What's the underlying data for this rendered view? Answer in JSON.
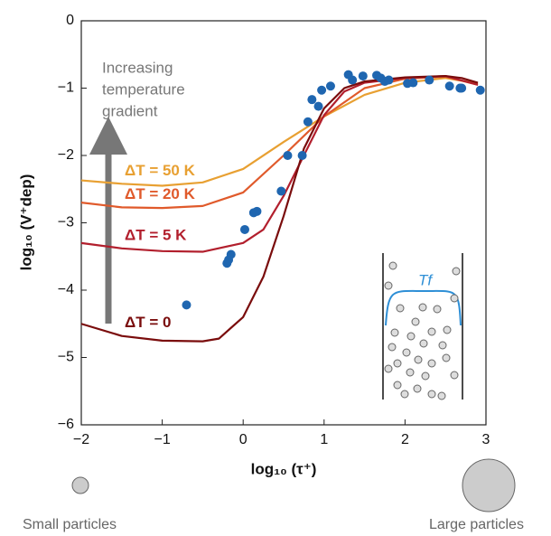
{
  "chart_data": {
    "type": "line",
    "x_label": "log₁₀ (τ⁺)",
    "y_label": "log₁₀ (V⁺dep)",
    "annotations": {
      "gradient": [
        "Increasing",
        "temperature",
        "gradient"
      ],
      "inset_label": "Tf",
      "small": "Small particles",
      "large": "Large particles"
    },
    "xlim": [
      -2,
      3
    ],
    "ylim": [
      -6,
      0
    ],
    "xticks": [
      {
        "value": -2,
        "label": "−2"
      },
      {
        "value": -1,
        "label": "−1"
      },
      0,
      1,
      2,
      3
    ],
    "yticks": [
      0,
      {
        "value": -1,
        "label": "−1"
      },
      {
        "value": -2,
        "label": "−2"
      },
      {
        "value": -3,
        "label": "−3"
      },
      {
        "value": -4,
        "label": "−4"
      },
      {
        "value": -5,
        "label": "−5"
      },
      {
        "value": -6,
        "label": "−6"
      }
    ],
    "series": [
      {
        "name": "ΔT = 50 K",
        "color": "#e8a032",
        "x": [
          -2,
          -1.5,
          -1,
          -0.5,
          0,
          0.5,
          1,
          1.5,
          2,
          2.5,
          2.9
        ],
        "values": [
          -2.37,
          -2.42,
          -2.45,
          -2.4,
          -2.2,
          -1.8,
          -1.42,
          -1.1,
          -0.92,
          -0.85,
          -0.93
        ]
      },
      {
        "name": "ΔT = 20 K",
        "color": "#e05a2b",
        "x": [
          -2,
          -1.5,
          -1,
          -0.5,
          0,
          0.5,
          1,
          1.5,
          2,
          2.5,
          2.9
        ],
        "values": [
          -2.7,
          -2.77,
          -2.78,
          -2.75,
          -2.55,
          -2.0,
          -1.42,
          -1.0,
          -0.86,
          -0.83,
          -0.95
        ]
      },
      {
        "name": "ΔT = 5 K",
        "color": "#b21f2d",
        "x": [
          -2,
          -1.5,
          -1,
          -0.5,
          0,
          0.25,
          0.5,
          0.75,
          1,
          1.25,
          1.5,
          2,
          2.5,
          2.9
        ],
        "values": [
          -3.3,
          -3.38,
          -3.42,
          -3.43,
          -3.3,
          -3.1,
          -2.6,
          -2.0,
          -1.4,
          -1.05,
          -0.92,
          -0.85,
          -0.82,
          -0.95
        ]
      },
      {
        "name": "ΔT = 0",
        "color": "#7a0c0c",
        "x": [
          -2,
          -1.5,
          -1,
          -0.5,
          -0.3,
          0,
          0.25,
          0.5,
          0.75,
          1,
          1.25,
          1.5,
          2,
          2.5,
          2.7,
          2.9
        ],
        "values": [
          -4.5,
          -4.68,
          -4.75,
          -4.76,
          -4.72,
          -4.4,
          -3.8,
          -2.9,
          -1.9,
          -1.3,
          -1.0,
          -0.9,
          -0.84,
          -0.82,
          -0.85,
          -0.92
        ]
      }
    ],
    "points": {
      "color": "#1f66b0",
      "x": [
        -0.7,
        -0.2,
        -0.18,
        -0.15,
        0.02,
        0.13,
        0.17,
        0.47,
        0.55,
        0.73,
        0.8,
        0.85,
        0.93,
        0.97,
        1.08,
        1.3,
        1.35,
        1.48,
        1.65,
        1.7,
        1.75,
        1.8,
        2.03,
        2.1,
        2.3,
        2.55,
        2.68,
        2.7,
        2.93
      ],
      "values": [
        -4.22,
        -3.6,
        -3.55,
        -3.47,
        -3.1,
        -2.85,
        -2.83,
        -2.53,
        -2.0,
        -2.0,
        -1.5,
        -1.17,
        -1.27,
        -1.03,
        -0.97,
        -0.8,
        -0.88,
        -0.82,
        -0.81,
        -0.85,
        -0.9,
        -0.88,
        -0.93,
        -0.92,
        -0.88,
        -0.97,
        -1.0,
        -1.0,
        -1.03
      ]
    }
  }
}
